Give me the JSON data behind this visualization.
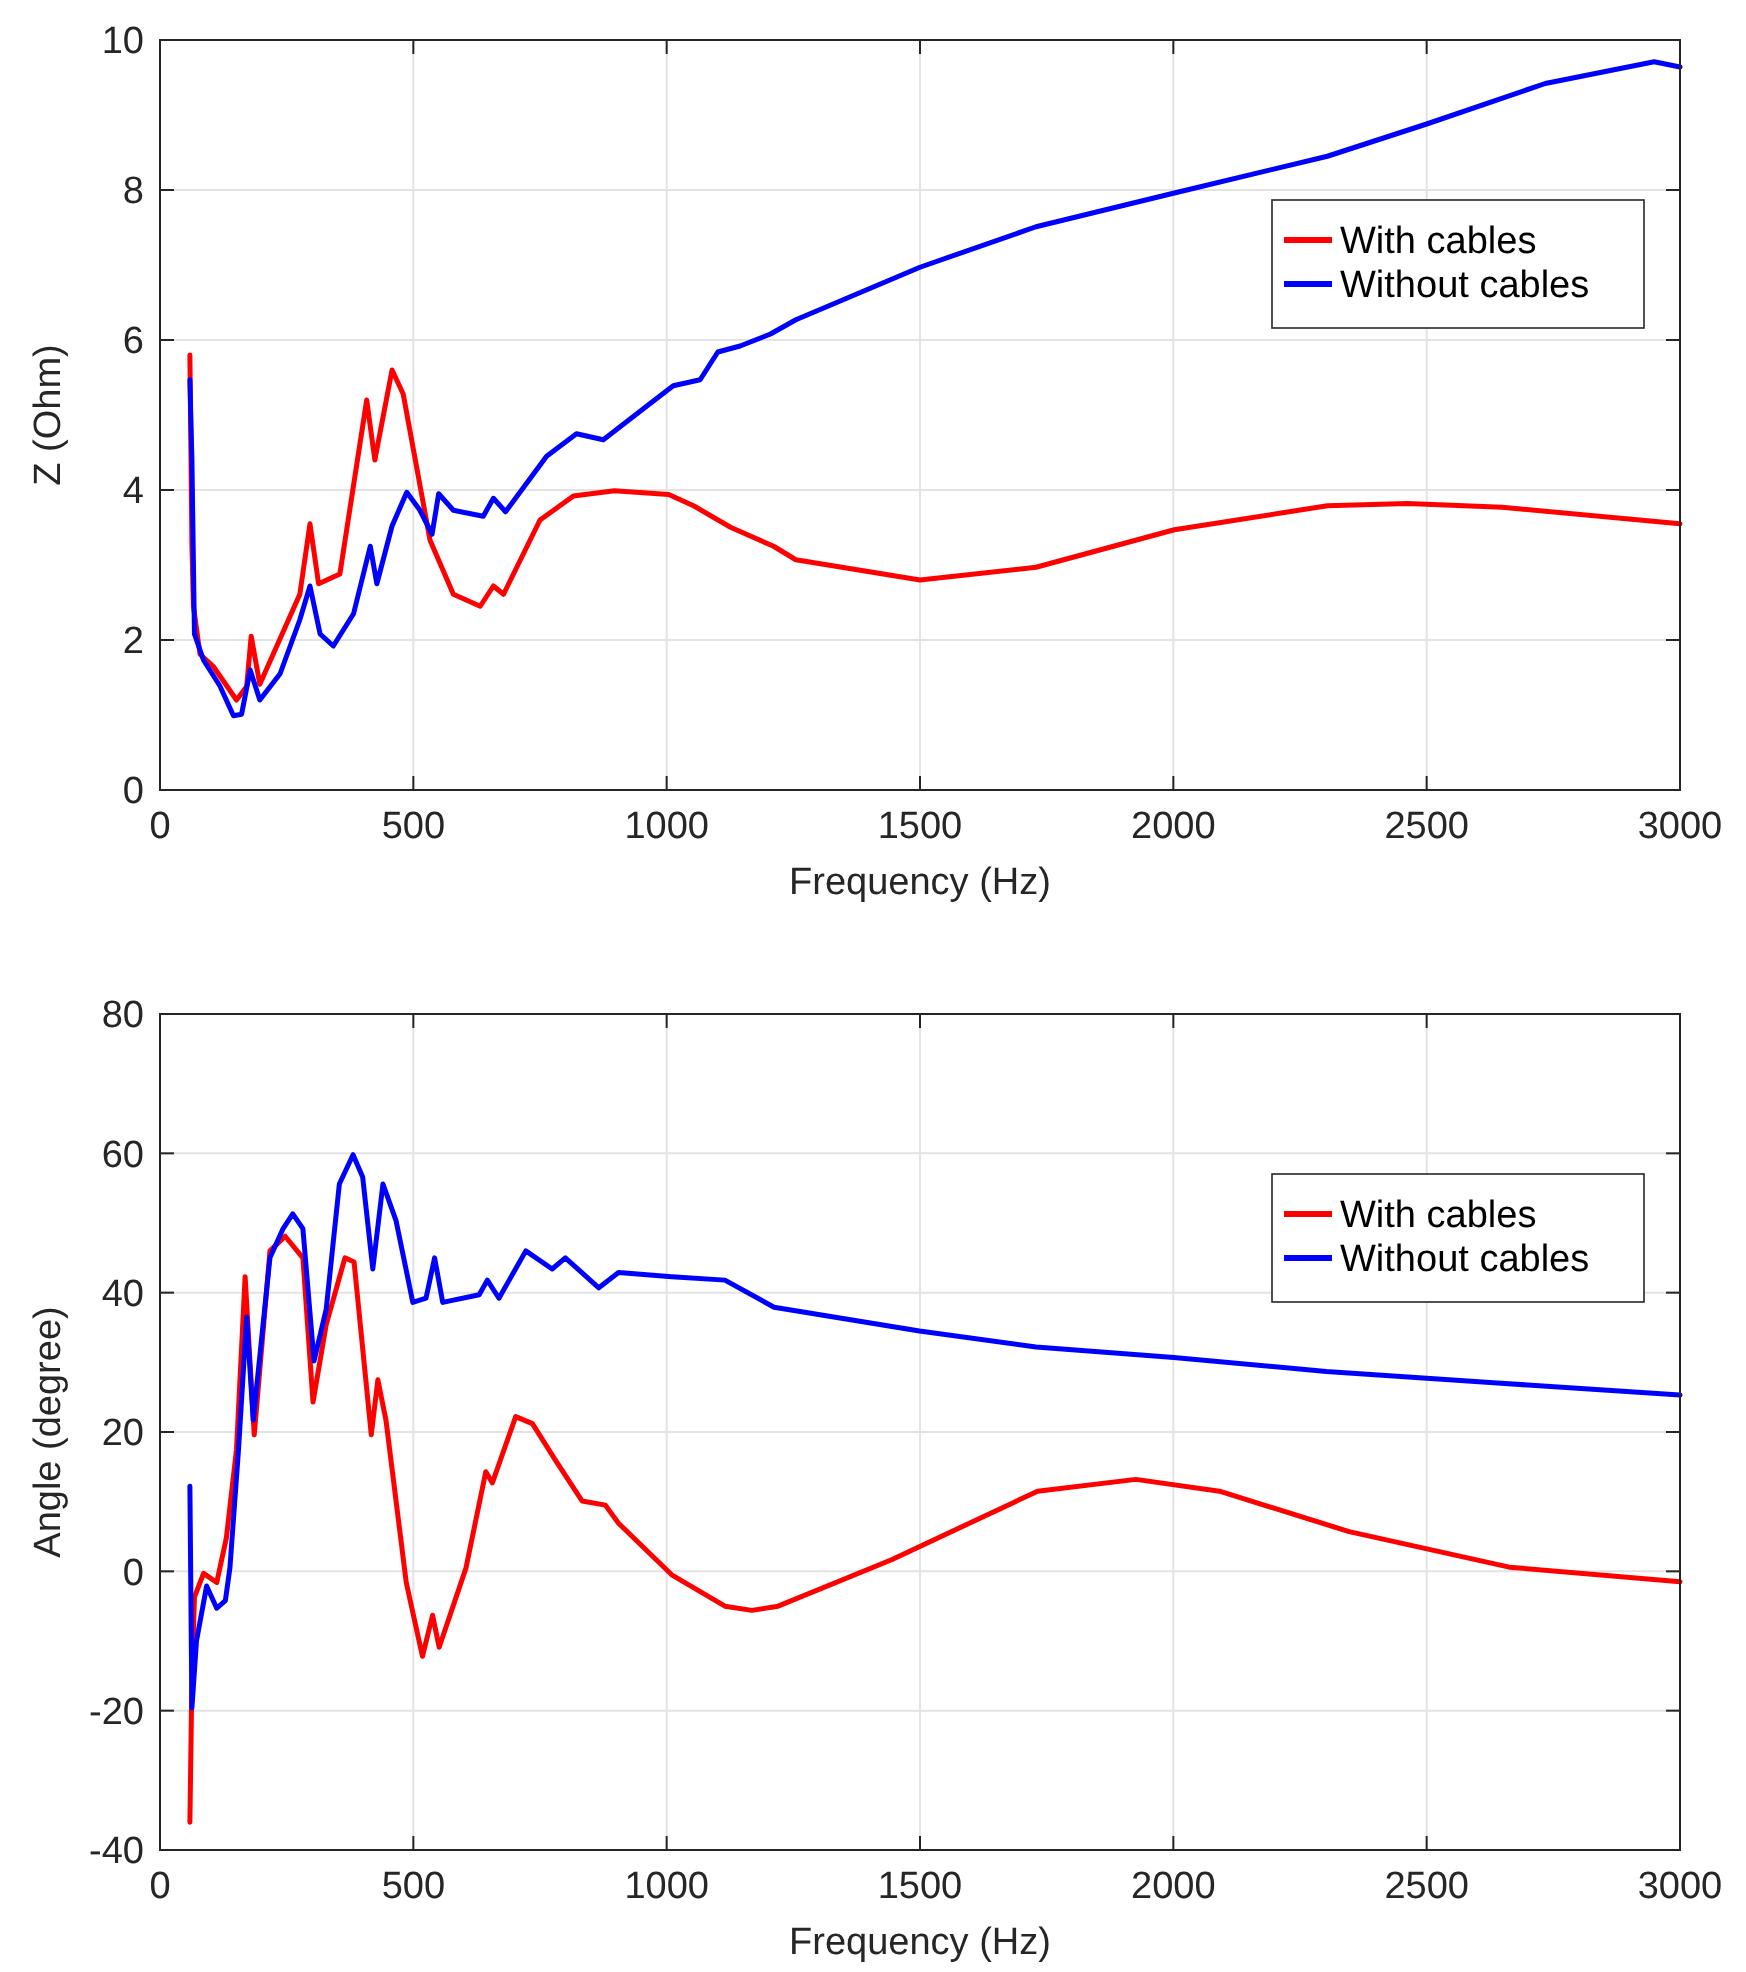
{
  "chart_data": [
    {
      "type": "line",
      "xlabel": "Frequency (Hz)",
      "ylabel": "Z (Ohm)",
      "xlim": [
        0,
        3000
      ],
      "ylim": [
        0,
        10
      ],
      "xticks": [
        0,
        500,
        1000,
        1500,
        2000,
        2500,
        3000
      ],
      "yticks": [
        0,
        2,
        4,
        6,
        8,
        10
      ],
      "grid": true,
      "legend": "top right",
      "line_style": "solid",
      "marker": "none",
      "series": [
        {
          "name": "With cables",
          "color": "#ff0000",
          "x": [
            59,
            63,
            66,
            79,
            105,
            151,
            171,
            180,
            197,
            276,
            296,
            313,
            355,
            408,
            424,
            458,
            480,
            533,
            579,
            632,
            658,
            678,
            750,
            816,
            897,
            1004,
            1053,
            1127,
            1211,
            1255,
            1500,
            1729,
            2002,
            2304,
            2462,
            2649,
            3000
          ],
          "values": [
            5.8,
            3.25,
            2.45,
            1.81,
            1.65,
            1.2,
            1.38,
            2.05,
            1.41,
            2.61,
            3.55,
            2.75,
            2.88,
            5.2,
            4.4,
            5.6,
            5.28,
            3.33,
            2.61,
            2.45,
            2.72,
            2.61,
            3.6,
            3.92,
            3.99,
            3.94,
            3.79,
            3.5,
            3.25,
            3.07,
            2.8,
            2.97,
            3.47,
            3.79,
            3.82,
            3.77,
            3.55
          ]
        },
        {
          "name": "Without cables",
          "color": "#0000ff",
          "x": [
            59,
            63,
            68,
            86,
            118,
            145,
            161,
            178,
            197,
            237,
            276,
            296,
            316,
            342,
            382,
            415,
            428,
            458,
            487,
            513,
            537,
            550,
            579,
            638,
            658,
            682,
            763,
            822,
            875,
            961,
            1013,
            1066,
            1101,
            1145,
            1205,
            1255,
            1500,
            1729,
            2002,
            2304,
            2500,
            2734,
            2949,
            3000
          ],
          "values": [
            5.47,
            4.4,
            2.08,
            1.73,
            1.39,
            0.99,
            1.01,
            1.6,
            1.2,
            1.55,
            2.27,
            2.72,
            2.08,
            1.92,
            2.35,
            3.25,
            2.75,
            3.52,
            3.97,
            3.73,
            3.41,
            3.95,
            3.73,
            3.65,
            3.89,
            3.71,
            4.45,
            4.75,
            4.67,
            5.12,
            5.39,
            5.47,
            5.84,
            5.92,
            6.08,
            6.27,
            6.97,
            7.51,
            7.96,
            8.45,
            8.88,
            9.42,
            9.71,
            9.64
          ]
        }
      ]
    },
    {
      "type": "line",
      "xlabel": "Frequency (Hz)",
      "ylabel": "Angle (degree)",
      "xlim": [
        0,
        3000
      ],
      "ylim": [
        -40,
        80
      ],
      "xticks": [
        0,
        500,
        1000,
        1500,
        2000,
        2500,
        3000
      ],
      "yticks": [
        -40,
        -20,
        0,
        20,
        40,
        60,
        80
      ],
      "grid": true,
      "legend": "top right",
      "line_style": "solid",
      "marker": "none",
      "series": [
        {
          "name": "With cables",
          "color": "#ff0000",
          "x": [
            59,
            63,
            68,
            86,
            112,
            131,
            151,
            168,
            186,
            217,
            247,
            282,
            302,
            328,
            365,
            383,
            417,
            430,
            446,
            486,
            518,
            538,
            551,
            604,
            643,
            656,
            702,
            735,
            781,
            833,
            879,
            905,
            1010,
            1115,
            1168,
            1220,
            1445,
            1732,
            1926,
            2091,
            2347,
            2663,
            3000
          ],
          "values": [
            -36,
            -15.3,
            -3.7,
            -0.3,
            -1.6,
            4.8,
            17.5,
            42.3,
            19.6,
            46,
            48.1,
            45,
            24.3,
            35.4,
            45,
            44.4,
            19.6,
            27.5,
            21.7,
            -1.6,
            -12.2,
            -6.3,
            -10.9,
            0.5,
            14.3,
            12.7,
            22.2,
            21.2,
            15.9,
            10.1,
            9.5,
            6.9,
            -0.5,
            -5,
            -5.6,
            -5,
            1.7,
            11.5,
            13.2,
            11.5,
            5.7,
            0.6,
            -1.5
          ]
        },
        {
          "name": "Without cables",
          "color": "#0000ff",
          "x": [
            59,
            63,
            72,
            92,
            112,
            129,
            138,
            155,
            171,
            184,
            217,
            243,
            262,
            282,
            304,
            328,
            354,
            381,
            400,
            420,
            440,
            466,
            499,
            525,
            542,
            558,
            630,
            646,
            669,
            722,
            774,
            800,
            866,
            905,
            1010,
            1115,
            1212,
            1499,
            1729,
            2001,
            2302,
            2647,
            3000
          ],
          "values": [
            12.2,
            -19.6,
            -10,
            -2.1,
            -5.3,
            -4.2,
            0.5,
            17.5,
            36.5,
            21.7,
            45,
            49.2,
            51.3,
            49.2,
            30.2,
            37.6,
            55.6,
            59.8,
            56.6,
            43.4,
            55.6,
            50.3,
            38.6,
            39.2,
            45,
            38.6,
            39.7,
            41.8,
            39.2,
            46,
            43.4,
            45,
            40.7,
            42.9,
            42.3,
            41.8,
            37.9,
            34.5,
            32.2,
            30.7,
            28.7,
            27,
            25.3
          ]
        }
      ]
    }
  ]
}
